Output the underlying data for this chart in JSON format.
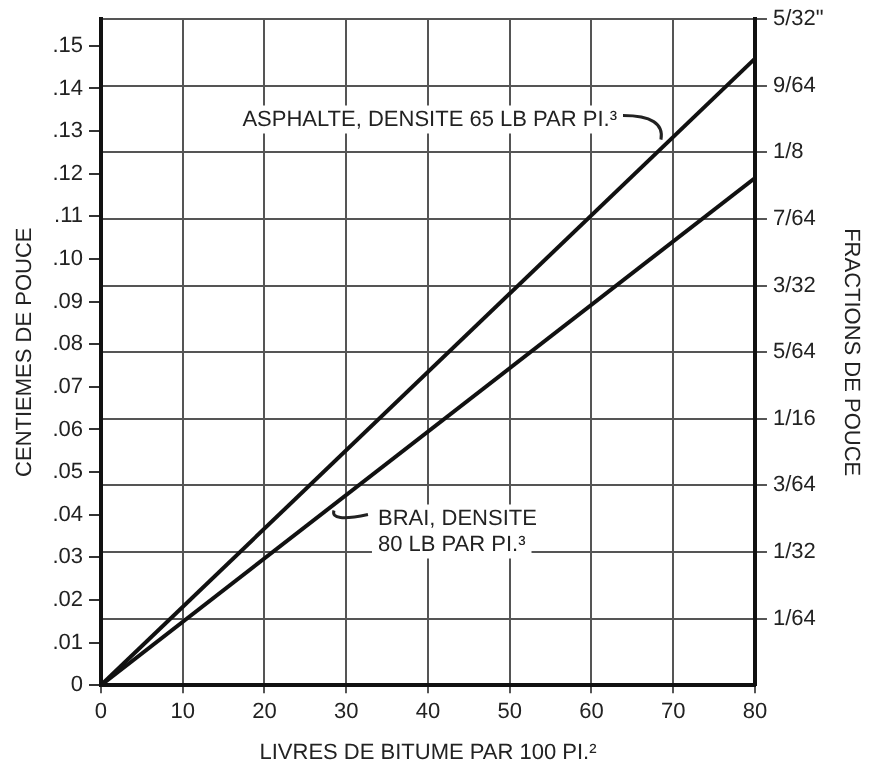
{
  "chart_data": {
    "type": "line",
    "x": [
      0,
      80
    ],
    "series": [
      {
        "color": "#111111",
        "values": [
          0,
          0.147
        ]
      },
      {
        "color": "#111111",
        "values": [
          0,
          0.119
        ]
      }
    ],
    "xlabel": "LIVRES DE BITUME PAR 100 PI.²",
    "ylabel": "CENTIEMES DE POUCE",
    "y2label": "FRACTIONS DE POUCE",
    "xlim": [
      0,
      80
    ],
    "xticks": [
      0,
      10,
      20,
      30,
      40,
      50,
      60,
      70,
      80
    ],
    "ylim": [
      0,
      0.15625
    ],
    "yticks": [
      {
        "value": 0,
        "label": "0"
      },
      {
        "value": 0.01,
        "label": ".01"
      },
      {
        "value": 0.02,
        "label": ".02"
      },
      {
        "value": 0.03,
        "label": ".03"
      },
      {
        "value": 0.04,
        "label": ".04"
      },
      {
        "value": 0.05,
        "label": ".05"
      },
      {
        "value": 0.06,
        "label": ".06"
      },
      {
        "value": 0.07,
        "label": ".07"
      },
      {
        "value": 0.08,
        "label": ".08"
      },
      {
        "value": 0.09,
        "label": ".09"
      },
      {
        "value": 0.1,
        "label": ".10"
      },
      {
        "value": 0.11,
        "label": ".11"
      },
      {
        "value": 0.12,
        "label": ".12"
      },
      {
        "value": 0.13,
        "label": ".13"
      },
      {
        "value": 0.14,
        "label": ".14"
      },
      {
        "value": 0.15,
        "label": ".15"
      }
    ],
    "y2lim": [
      0,
      0.15625
    ],
    "y2ticks": [
      {
        "value": 0.015625,
        "label": "1/64"
      },
      {
        "value": 0.03125,
        "label": "1/32"
      },
      {
        "value": 0.046875,
        "label": "3/64"
      },
      {
        "value": 0.0625,
        "label": "1/16"
      },
      {
        "value": 0.078125,
        "label": "5/64"
      },
      {
        "value": 0.09375,
        "label": "3/32"
      },
      {
        "value": 0.109375,
        "label": "7/64"
      },
      {
        "value": 0.125,
        "label": "1/8"
      },
      {
        "value": 0.140625,
        "label": "9/64"
      },
      {
        "value": 0.15625,
        "label": "5/32\""
      }
    ],
    "grid": true,
    "legend": false,
    "marker": "none",
    "line_style": "solid",
    "annotations": [
      {
        "text": "ASPHALTE, DENSITE 65 LB PAR PI.³",
        "x": 68.5,
        "y": 0.128
      },
      {
        "text": "BRAI, DENSITE 80 LB PAR PI.³",
        "x": 28.5,
        "y": 0.041
      }
    ]
  }
}
